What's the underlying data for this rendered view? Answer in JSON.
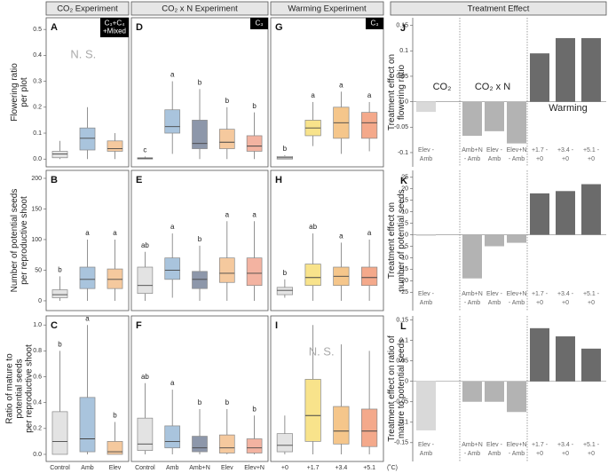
{
  "headers": [
    "CO₂ Experiment",
    "CO₂ x N Experiment",
    "Warming Experiment",
    "Treatment Effect"
  ],
  "chart_data": [
    {
      "type": "box",
      "panel": "A",
      "ylim": [
        -0.03,
        0.545
      ],
      "yticks": [
        {
          "value": 0,
          "label": "0.0"
        },
        0.1,
        0.2,
        0.3,
        0.4,
        0.5
      ],
      "ylabel": [
        "Flowering ratio",
        "per plot"
      ],
      "annotation": "N. S.",
      "badge": [
        "C₃+C₄",
        "+Mixed"
      ],
      "colors": [
        "#e3e3e3",
        "#a9c4dd",
        "#f5c99e"
      ],
      "boxes": [
        {
          "q1": 0.005,
          "median": 0.02,
          "q3": 0.03,
          "whislo": 0,
          "whishi": 0.07
        },
        {
          "q1": 0.035,
          "median": 0.08,
          "q3": 0.12,
          "whislo": 0,
          "whishi": 0.2
        },
        {
          "q1": 0.03,
          "median": 0.04,
          "q3": 0.07,
          "whislo": 0,
          "whishi": 0.1
        }
      ]
    },
    {
      "type": "box",
      "panel": "D",
      "ylim": [
        -0.03,
        0.545
      ],
      "badge": [
        "C₃"
      ],
      "colors": [
        "#e3e3e3",
        "#a9c4dd",
        "#8d97aa",
        "#f5c99e",
        "#f3b3a1"
      ],
      "letters": [
        "c",
        "a",
        "b",
        "b",
        "b"
      ],
      "boxes": [
        {
          "q1": 0,
          "median": 0.003,
          "q3": 0.005,
          "whislo": 0,
          "whishi": 0.01
        },
        {
          "q1": 0.1,
          "median": 0.125,
          "q3": 0.19,
          "whislo": 0.02,
          "whishi": 0.3
        },
        {
          "q1": 0.04,
          "median": 0.06,
          "q3": 0.15,
          "whislo": 0,
          "whishi": 0.27
        },
        {
          "q1": 0.04,
          "median": 0.065,
          "q3": 0.115,
          "whislo": 0,
          "whishi": 0.2
        },
        {
          "q1": 0.03,
          "median": 0.05,
          "q3": 0.09,
          "whislo": 0,
          "whishi": 0.18
        }
      ]
    },
    {
      "type": "box",
      "panel": "G",
      "ylim": [
        -0.03,
        0.545
      ],
      "badge": [
        "C₃"
      ],
      "colors": [
        "#e3e3e3",
        "#f8e38b",
        "#f5c68b",
        "#f4a98b"
      ],
      "letters": [
        "b",
        "a",
        "a",
        "a"
      ],
      "boxes": [
        {
          "q1": 0,
          "median": 0.005,
          "q3": 0.01,
          "whislo": 0,
          "whishi": 0.015
        },
        {
          "q1": 0.09,
          "median": 0.12,
          "q3": 0.15,
          "whislo": 0.05,
          "whishi": 0.22
        },
        {
          "q1": 0.08,
          "median": 0.14,
          "q3": 0.2,
          "whislo": 0.02,
          "whishi": 0.26
        },
        {
          "q1": 0.08,
          "median": 0.14,
          "q3": 0.18,
          "whislo": 0.03,
          "whishi": 0.22
        }
      ]
    },
    {
      "type": "bar",
      "panel": "J",
      "ylim": [
        -0.128,
        0.165
      ],
      "yticks": [
        -0.1,
        -0.05,
        0,
        0.05,
        0.1,
        0.15
      ],
      "ylabel": [
        "Treatment effect on",
        "flowering ratio"
      ],
      "annotations": [
        "CO₂",
        "CO₂ x N",
        "Warming"
      ],
      "categories": [
        [
          "Elev -",
          "Amb"
        ],
        [
          "Amb+N",
          "- Amb"
        ],
        [
          "Elev -",
          "Amb"
        ],
        [
          "Elev+N",
          "- Amb"
        ],
        [
          "+1.7 -",
          "+0"
        ],
        [
          "+3.4 -",
          "+0"
        ],
        [
          "+5.1 -",
          "+0"
        ]
      ],
      "values": [
        -0.02,
        -0.067,
        -0.058,
        -0.082,
        0.095,
        0.125,
        0.125
      ],
      "colors": [
        "#d9d9d9",
        "#b3b3b3",
        "#b3b3b3",
        "#b3b3b3",
        "#6b6b6b",
        "#6b6b6b",
        "#6b6b6b"
      ]
    },
    {
      "type": "box",
      "panel": "B",
      "ylim": [
        -16,
        213
      ],
      "yticks": [
        0,
        50,
        100,
        150,
        200
      ],
      "ylabel": [
        "Number of potential seeds",
        "per reproductive shoot"
      ],
      "colors": [
        "#e3e3e3",
        "#a9c4dd",
        "#f5c99e"
      ],
      "letters": [
        "b",
        "a",
        "a"
      ],
      "boxes": [
        {
          "q1": 5,
          "median": 10,
          "q3": 18,
          "whislo": 0,
          "whishi": 40
        },
        {
          "q1": 20,
          "median": 35,
          "q3": 55,
          "whislo": 0,
          "whishi": 100
        },
        {
          "q1": 20,
          "median": 35,
          "q3": 52,
          "whislo": 0,
          "whishi": 100
        }
      ]
    },
    {
      "type": "box",
      "panel": "E",
      "ylim": [
        -16,
        213
      ],
      "colors": [
        "#e3e3e3",
        "#a9c4dd",
        "#8d97aa",
        "#f5c99e",
        "#f3b3a1"
      ],
      "letters": [
        "ab",
        "a",
        "b",
        "a",
        "a"
      ],
      "boxes": [
        {
          "q1": 12,
          "median": 25,
          "q3": 55,
          "whislo": 0,
          "whishi": 80
        },
        {
          "q1": 35,
          "median": 50,
          "q3": 70,
          "whislo": 5,
          "whishi": 110
        },
        {
          "q1": 20,
          "median": 35,
          "q3": 48,
          "whislo": 0,
          "whishi": 90
        },
        {
          "q1": 30,
          "median": 45,
          "q3": 70,
          "whislo": 0,
          "whishi": 130
        },
        {
          "q1": 25,
          "median": 45,
          "q3": 70,
          "whislo": 0,
          "whishi": 130
        }
      ]
    },
    {
      "type": "box",
      "panel": "H",
      "ylim": [
        -16,
        213
      ],
      "colors": [
        "#e3e3e3",
        "#f8e38b",
        "#f5c68b",
        "#f4a98b"
      ],
      "letters": [
        "b",
        "ab",
        "a",
        "a"
      ],
      "boxes": [
        {
          "q1": 10,
          "median": 17,
          "q3": 22,
          "whislo": 5,
          "whishi": 35
        },
        {
          "q1": 25,
          "median": 38,
          "q3": 60,
          "whislo": 0,
          "whishi": 110
        },
        {
          "q1": 25,
          "median": 40,
          "q3": 55,
          "whislo": 0,
          "whishi": 95
        },
        {
          "q1": 25,
          "median": 38,
          "q3": 55,
          "whislo": 0,
          "whishi": 100
        }
      ]
    },
    {
      "type": "bar",
      "panel": "K",
      "ylim": [
        -33,
        28
      ],
      "yticks": [
        -25,
        -20,
        -15,
        -10,
        -5,
        0,
        5,
        10,
        15,
        20,
        25
      ],
      "ylabel": [
        "Treatment effect on",
        "number of potential seeds"
      ],
      "categories": [
        [
          "Elev -",
          "Amb"
        ],
        [
          "Amb+N",
          "- Amb"
        ],
        [
          "Elev -",
          "Amb"
        ],
        [
          "Elev+N",
          "- Amb"
        ],
        [
          "+1.7 -",
          "+0"
        ],
        [
          "+3.4 -",
          "+0"
        ],
        [
          "+5.1 -",
          "+0"
        ]
      ],
      "values": [
        -0.5,
        -19,
        -5,
        -3.5,
        18,
        19,
        22
      ],
      "colors": [
        "#d9d9d9",
        "#b3b3b3",
        "#b3b3b3",
        "#b3b3b3",
        "#6b6b6b",
        "#6b6b6b",
        "#6b6b6b"
      ]
    },
    {
      "type": "box",
      "panel": "C",
      "ylim": [
        -0.055,
        1.07
      ],
      "yticks": [
        {
          "value": 0,
          "label": "0.0"
        },
        0.2,
        0.4,
        0.6,
        0.8,
        {
          "value": 1,
          "label": "1.0"
        }
      ],
      "ylabel": [
        "Ratio of mature to",
        "potential seeds",
        "per reproductive shoot"
      ],
      "categories": [
        "Control",
        "Amb",
        "Elev"
      ],
      "colors": [
        "#e3e3e3",
        "#a9c4dd",
        "#f5c99e"
      ],
      "letters": [
        "b",
        "a",
        "b"
      ],
      "boxes": [
        {
          "q1": 0,
          "median": 0.1,
          "q3": 0.33,
          "whislo": 0,
          "whishi": 0.8
        },
        {
          "q1": 0.02,
          "median": 0.12,
          "q3": 0.44,
          "whislo": 0,
          "whishi": 1.0
        },
        {
          "q1": 0,
          "median": 0.02,
          "q3": 0.1,
          "whislo": 0,
          "whishi": 0.25
        }
      ]
    },
    {
      "type": "box",
      "panel": "F",
      "ylim": [
        -0.055,
        1.07
      ],
      "categories": [
        "Control",
        "Amb",
        "Amb+N",
        "Elev",
        "Elev+N"
      ],
      "colors": [
        "#e3e3e3",
        "#a9c4dd",
        "#8d97aa",
        "#f5c99e",
        "#f3b3a1"
      ],
      "letters": [
        "ab",
        "a",
        "b",
        "b",
        "b"
      ],
      "boxes": [
        {
          "q1": 0.03,
          "median": 0.08,
          "q3": 0.28,
          "whislo": 0,
          "whishi": 0.55
        },
        {
          "q1": 0.05,
          "median": 0.1,
          "q3": 0.22,
          "whislo": 0,
          "whishi": 0.5
        },
        {
          "q1": 0.02,
          "median": 0.05,
          "q3": 0.14,
          "whislo": 0,
          "whishi": 0.35
        },
        {
          "q1": 0.01,
          "median": 0.05,
          "q3": 0.15,
          "whislo": 0,
          "whishi": 0.35
        },
        {
          "q1": 0.01,
          "median": 0.05,
          "q3": 0.12,
          "whislo": 0,
          "whishi": 0.3
        }
      ]
    },
    {
      "type": "box",
      "panel": "I",
      "ylim": [
        -0.055,
        1.07
      ],
      "categories": [
        "+0",
        "+1.7",
        "+3.4",
        "+5.1"
      ],
      "unit": "(˚C)",
      "annotation": "N. S.",
      "colors": [
        "#e3e3e3",
        "#f8e38b",
        "#f5c68b",
        "#f4a98b"
      ],
      "boxes": [
        {
          "q1": 0.02,
          "median": 0.07,
          "q3": 0.16,
          "whislo": 0,
          "whishi": 0.3
        },
        {
          "q1": 0.1,
          "median": 0.3,
          "q3": 0.58,
          "whislo": 0,
          "whishi": 1.0
        },
        {
          "q1": 0.08,
          "median": 0.18,
          "q3": 0.37,
          "whislo": 0,
          "whishi": 0.85
        },
        {
          "q1": 0.06,
          "median": 0.18,
          "q3": 0.35,
          "whislo": 0,
          "whishi": 0.8
        }
      ]
    },
    {
      "type": "bar",
      "panel": "L",
      "ylim": [
        -0.196,
        0.16
      ],
      "yticks": [
        -0.15,
        -0.1,
        -0.05,
        0,
        0.05,
        0.1,
        0.15
      ],
      "ylabel": [
        "Treatment effect on ratio of",
        "mature to potential seeds"
      ],
      "categories": [
        [
          "Elev -",
          "Amb"
        ],
        [
          "Amb+N",
          "- Amb"
        ],
        [
          "Elev -",
          "Amb"
        ],
        [
          "Elev+N",
          "- Amb"
        ],
        [
          "+1.7 -",
          "+0"
        ],
        [
          "+3.4 -",
          "+0"
        ],
        [
          "+5.1 -",
          "+0"
        ]
      ],
      "values": [
        -0.12,
        -0.05,
        -0.05,
        -0.075,
        0.13,
        0.11,
        0.08
      ],
      "colors": [
        "#d9d9d9",
        "#b3b3b3",
        "#b3b3b3",
        "#b3b3b3",
        "#6b6b6b",
        "#6b6b6b",
        "#6b6b6b"
      ]
    }
  ]
}
